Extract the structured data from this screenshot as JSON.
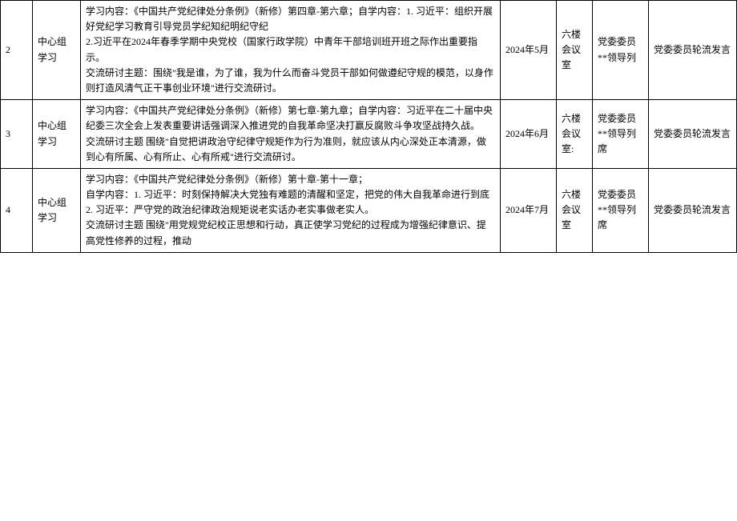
{
  "table": {
    "rows": [
      {
        "seq": "2",
        "type": "中心组学习",
        "content": "学习内容：《中国共产党纪律处分条例》（新修）第四章-第六章；自学内容：1. 习近平：组织开展好党纪学习教育引导党员学纪知纪明纪守纪\n2.习近平在2024年春季学期中央党校（国家行政学院）中青年干部培训班开班之际作出重要指示。\n交流研讨主题：围绕\"我是谁，为了谁，我为什么而奋斗党员干部如何做遵纪守规的模范，以身作则打造风清气正干事创业环境\"进行交流研讨。",
        "date": "2024年5月",
        "place": "六楼会议室",
        "attendee": "党委委员**领导列",
        "note": "党委委员轮流发言"
      },
      {
        "seq": "3",
        "type": "中心组学习",
        "content": "学习内容：《中国共产党纪律处分条例》（新修）第七章-第九章；自学内容：习近平在二十届中央纪委三次全会上发表重要讲话强调深入推进党的自我革命坚决打赢反腐败斗争攻坚战持久战。\n交流研讨主题  围绕\"自觉把讲政治守纪律守规矩作为行为准则，就应该从内心深处正本清源，做到心有所属、心有所止、心有所戒\"进行交流研讨。",
        "date": "2024年6月",
        "place": "六楼会议室:",
        "attendee": "党委委员**领导列席",
        "note": "党委委员轮流发言"
      },
      {
        "seq": "4",
        "type": "中心组学习",
        "content": "学习内容：《中国共产党纪律处分条例》（新修）第十章-第十一章；\n自学内容：1. 习近平：时刻保持解决大党独有难题的清醒和坚定，把党的伟大自我革命进行到底\n2. 习近平：严守党的政治纪律政治规矩说老实话办老实事做老实人。\n交流研讨主题  围绕\"用党规党纪校正思想和行动，真正使学习党纪的过程成为增强纪律意识、提高党性修养的过程，推动",
        "date": "2024年7月",
        "place": "六楼会议室",
        "attendee": "党委委员**领导列席",
        "note": "党委委员轮流发言"
      }
    ]
  }
}
